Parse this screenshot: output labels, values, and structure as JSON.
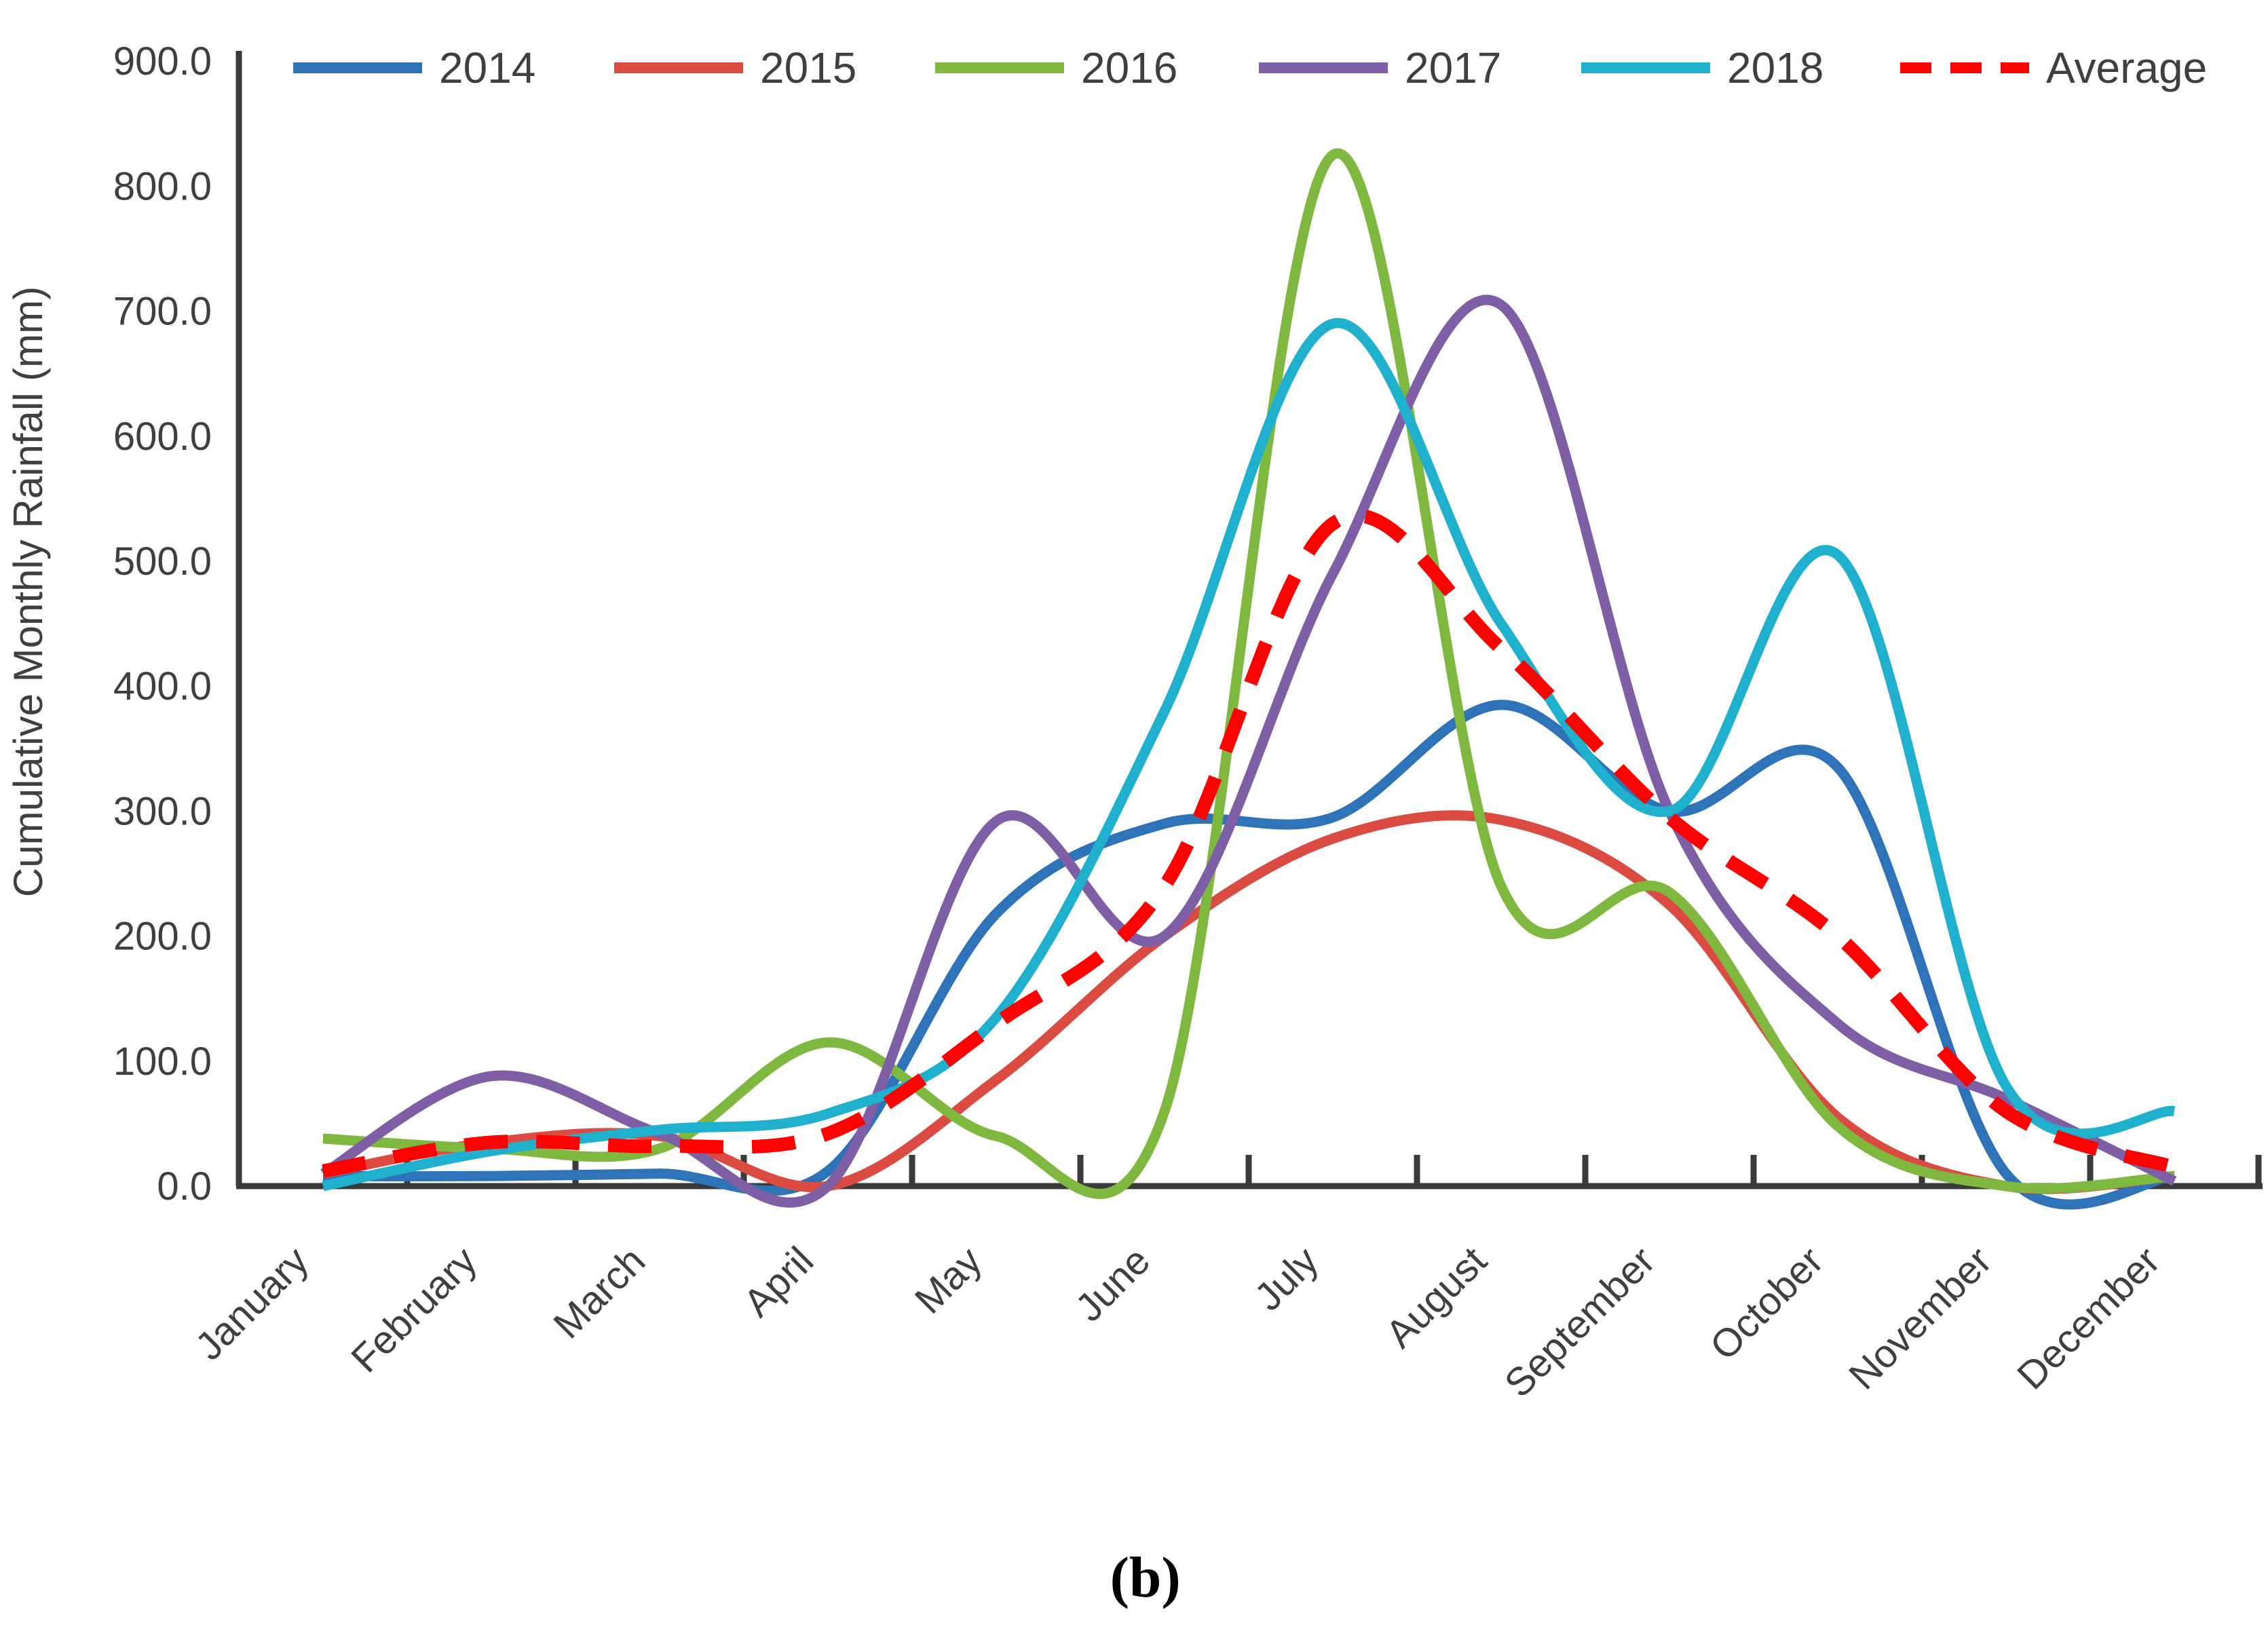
{
  "chart_data": {
    "type": "line",
    "title": "",
    "xlabel": "",
    "ylabel": "Cumulative Monthly Rainfall (mm)",
    "caption": "(b)",
    "legend_position": "top",
    "grid": false,
    "ylim": [
      0,
      900
    ],
    "y_step": 100,
    "y_tick_labels": [
      "0.0",
      "100.0",
      "200.0",
      "300.0",
      "400.0",
      "500.0",
      "600.0",
      "700.0",
      "800.0",
      "900.0"
    ],
    "categories": [
      "January",
      "February",
      "March",
      "April",
      "May",
      "June",
      "July",
      "August",
      "September",
      "October",
      "November",
      "December"
    ],
    "series": [
      {
        "name": "2014",
        "color": "#2E73B8",
        "dashed": false,
        "values": [
          8,
          8,
          10,
          12,
          218,
          290,
          295,
          385,
          300,
          335,
          10,
          8
        ]
      },
      {
        "name": "2015",
        "color": "#DC4B41",
        "dashed": false,
        "values": [
          10,
          35,
          40,
          0,
          85,
          200,
          278,
          293,
          225,
          55,
          0,
          8
        ]
      },
      {
        "name": "2016",
        "color": "#7FB83E",
        "dashed": false,
        "values": [
          38,
          30,
          30,
          115,
          40,
          60,
          825,
          240,
          235,
          48,
          0,
          8
        ]
      },
      {
        "name": "2017",
        "color": "#7E5FA6",
        "dashed": false,
        "values": [
          10,
          88,
          42,
          0,
          292,
          200,
          490,
          705,
          300,
          130,
          70,
          4
        ]
      },
      {
        "name": "2018",
        "color": "#1FB0CE",
        "dashed": false,
        "values": [
          0,
          28,
          45,
          58,
          135,
          380,
          690,
          450,
          300,
          505,
          80,
          60
        ]
      },
      {
        "name": "Average",
        "color": "#FF0000",
        "dashed": true,
        "values": [
          12,
          35,
          32,
          42,
          130,
          240,
          530,
          430,
          295,
          200,
          60,
          15
        ]
      }
    ],
    "axis_color": "#3a3a3a",
    "text_color": "#3f3f3f"
  }
}
